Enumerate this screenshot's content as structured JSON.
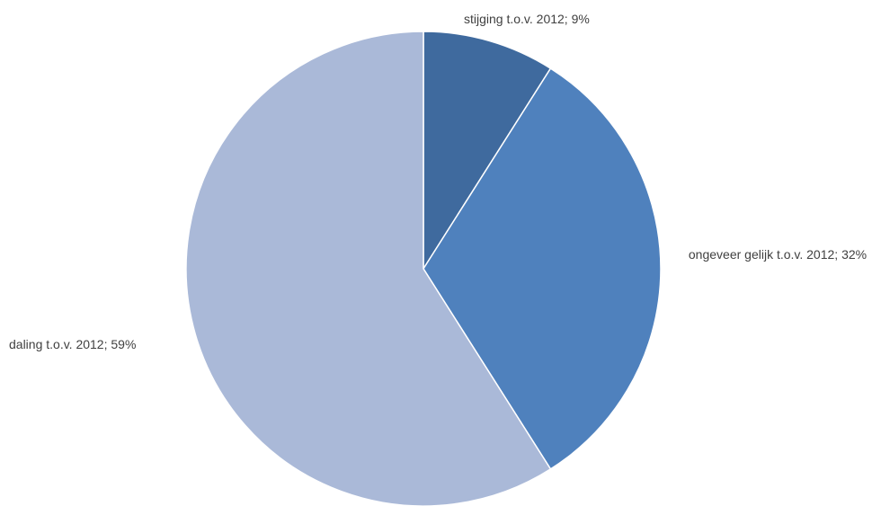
{
  "chart_data": {
    "type": "pie",
    "title": "",
    "slices": [
      {
        "category": "stijging t.o.v. 2012",
        "value": 9,
        "label": "stijging t.o.v. 2012; 9%",
        "color": "#3f6a9e"
      },
      {
        "category": "ongeveer gelijk t.o.v. 2012",
        "value": 32,
        "label": "ongeveer gelijk t.o.v. 2012; 32%",
        "color": "#4f81bd"
      },
      {
        "category": "daling t.o.v. 2012",
        "value": 59,
        "label": "daling t.o.v. 2012; 59%",
        "color": "#aab9d8"
      }
    ],
    "unit": "%",
    "legend": "none",
    "start_angle": "12 o'clock, clockwise"
  }
}
